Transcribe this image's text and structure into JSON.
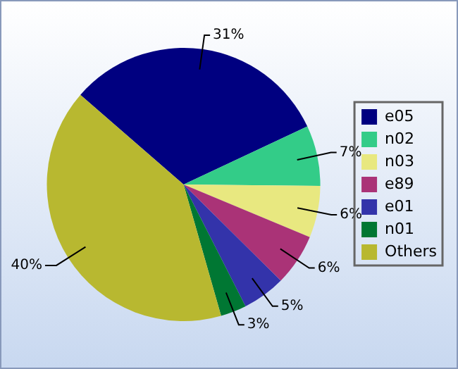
{
  "chart_data": {
    "type": "pie",
    "categories": [
      "e05",
      "n02",
      "n03",
      "e89",
      "e01",
      "n01",
      "Others"
    ],
    "values": [
      31,
      7,
      6,
      6,
      5,
      3,
      40
    ],
    "colors": [
      "#000080",
      "#33cc88",
      "#e8e880",
      "#aa3377",
      "#3333aa",
      "#007733",
      "#b8b830"
    ],
    "value_labels": [
      "31%",
      "7%",
      "6%",
      "6%",
      "5%",
      "3%",
      "40%"
    ],
    "legend": "right"
  }
}
